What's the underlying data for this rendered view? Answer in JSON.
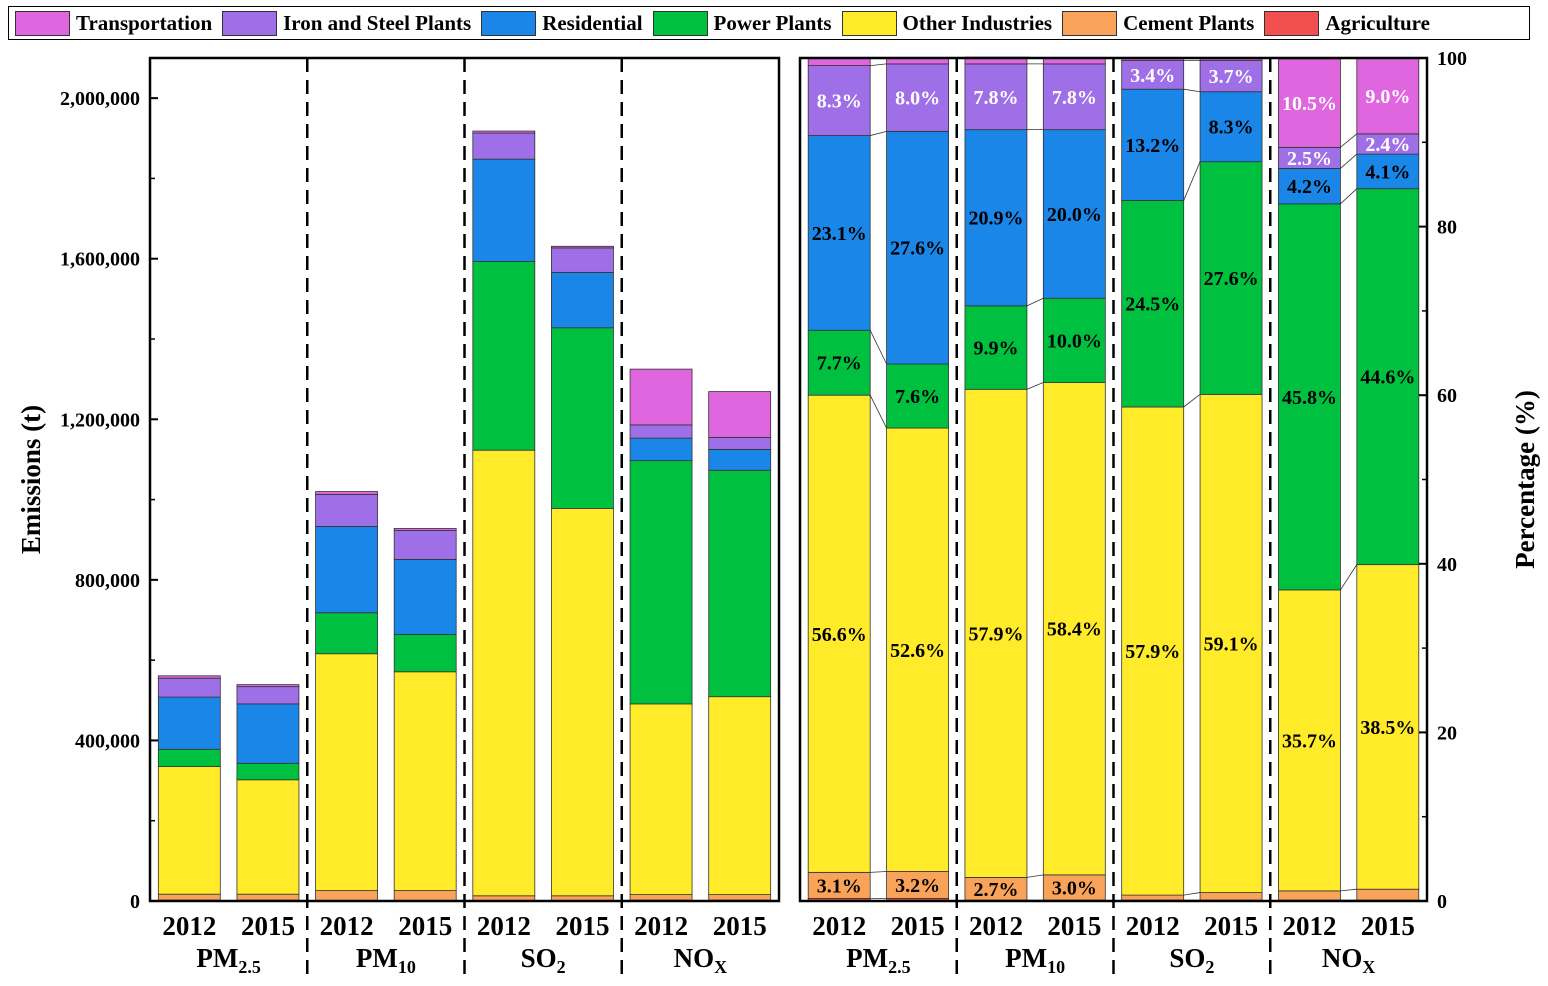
{
  "legend": [
    {
      "label": "Transportation",
      "color": "#e066e0"
    },
    {
      "label": "Iron and Steel Plants",
      "color": "#9f6fe8"
    },
    {
      "label": "Residential",
      "color": "#1a86e8"
    },
    {
      "label": "Power Plants",
      "color": "#00c040"
    },
    {
      "label": "Other Industries",
      "color": "#ffeb2a"
    },
    {
      "label": "Cement Plants",
      "color": "#f9a35a"
    },
    {
      "label": "Agriculture",
      "color": "#f25050"
    }
  ],
  "chart_data": [
    {
      "type": "bar",
      "stacked": true,
      "ylabel": "Emissions (t)",
      "ylim": [
        0,
        2100000
      ],
      "yticks": [
        "0",
        "400,000",
        "800,000",
        "1,200,000",
        "1,600,000",
        "2,000,000"
      ],
      "categories": [
        "2012",
        "2015",
        "2012",
        "2015",
        "2012",
        "2015",
        "2012",
        "2015"
      ],
      "groups": [
        {
          "name": "PM",
          "sub": "2.5"
        },
        {
          "name": "PM",
          "sub": "10"
        },
        {
          "name": "SO",
          "sub": "2"
        },
        {
          "name": "NO",
          "sub": "X"
        }
      ],
      "series": [
        {
          "name": "Agriculture",
          "values": [
            2000,
            2000,
            1000,
            1000,
            1000,
            1000,
            2000,
            2000
          ]
        },
        {
          "name": "Cement Plants",
          "values": [
            15000,
            15000,
            25000,
            25000,
            12000,
            12000,
            14000,
            14000
          ]
        },
        {
          "name": "Other Industries",
          "values": [
            318000,
            285000,
            590000,
            545000,
            1110000,
            965000,
            475000,
            493000
          ]
        },
        {
          "name": "Power Plants",
          "values": [
            43000,
            41000,
            102000,
            93000,
            470000,
            450000,
            606000,
            564000
          ]
        },
        {
          "name": "Residential",
          "values": [
            130000,
            148000,
            215000,
            187000,
            255000,
            138000,
            56000,
            52000
          ]
        },
        {
          "name": "Iron and Steel Plants",
          "values": [
            47000,
            43000,
            80000,
            72000,
            65000,
            61000,
            33000,
            30000
          ]
        },
        {
          "name": "Transportation",
          "values": [
            6000,
            5000,
            7000,
            5000,
            5000,
            4000,
            139000,
            114000
          ]
        }
      ]
    },
    {
      "type": "bar",
      "stacked": true,
      "ylabel": "Percentage (%)",
      "ylim": [
        0,
        100
      ],
      "yticks": [
        "0",
        "20",
        "40",
        "60",
        "80",
        "100"
      ],
      "categories": [
        "2012",
        "2015",
        "2012",
        "2015",
        "2012",
        "2015",
        "2012",
        "2015"
      ],
      "groups": [
        {
          "name": "PM",
          "sub": "2.5"
        },
        {
          "name": "PM",
          "sub": "10"
        },
        {
          "name": "SO",
          "sub": "2"
        },
        {
          "name": "NO",
          "sub": "X"
        }
      ],
      "series": [
        {
          "name": "Agriculture",
          "values": [
            0.3,
            0.3,
            0.1,
            0.1,
            0.1,
            0.1,
            0.1,
            0.1
          ]
        },
        {
          "name": "Cement Plants",
          "values": [
            3.1,
            3.2,
            2.7,
            3.0,
            0.6,
            0.9,
            1.1,
            1.3
          ]
        },
        {
          "name": "Other Industries",
          "values": [
            56.6,
            52.6,
            57.9,
            58.4,
            57.9,
            59.1,
            35.7,
            38.5
          ]
        },
        {
          "name": "Power Plants",
          "values": [
            7.7,
            7.6,
            9.9,
            10.0,
            24.5,
            27.6,
            45.8,
            44.6
          ]
        },
        {
          "name": "Residential",
          "values": [
            23.1,
            27.6,
            20.9,
            20.0,
            13.2,
            8.3,
            4.2,
            4.1
          ]
        },
        {
          "name": "Iron and Steel Plants",
          "values": [
            8.3,
            8.0,
            7.8,
            7.8,
            3.4,
            3.7,
            2.5,
            2.4
          ]
        },
        {
          "name": "Transportation",
          "values": [
            0.9,
            0.7,
            0.8,
            0.7,
            0.3,
            0.3,
            10.5,
            9.0
          ]
        }
      ],
      "data_labels": [
        [
          "",
          "",
          "",
          "",
          "",
          "",
          "",
          ""
        ],
        [
          "3.1%",
          "3.2%",
          "2.7%",
          "3.0%",
          "",
          "",
          "",
          ""
        ],
        [
          "56.6%",
          "52.6%",
          "57.9%",
          "58.4%",
          "57.9%",
          "59.1%",
          "35.7%",
          "38.5%"
        ],
        [
          "7.7%",
          "7.6%",
          "9.9%",
          "10.0%",
          "24.5%",
          "27.6%",
          "45.8%",
          "44.6%"
        ],
        [
          "23.1%",
          "27.6%",
          "20.9%",
          "20.0%",
          "13.2%",
          "8.3%",
          "4.2%",
          "4.1%"
        ],
        [
          "8.3%",
          "8.0%",
          "7.8%",
          "7.8%",
          "3.4%",
          "3.7%",
          "2.5%",
          "2.4%"
        ],
        [
          "",
          "",
          "",
          "",
          "",
          "",
          "10.5%",
          "9.0%"
        ]
      ]
    }
  ]
}
